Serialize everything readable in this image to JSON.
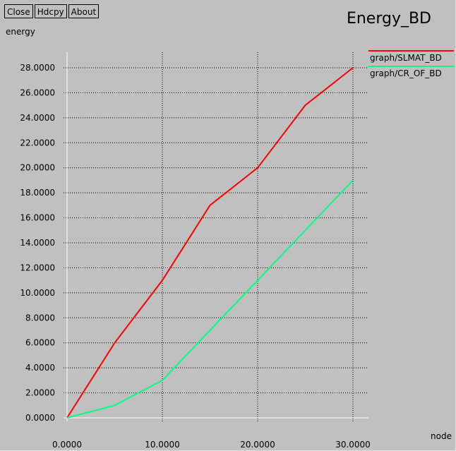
{
  "window": {
    "buttons": [
      {
        "id": "close",
        "label": "Close"
      },
      {
        "id": "hdcpy",
        "label": "Hdcpy"
      },
      {
        "id": "about",
        "label": "About"
      }
    ]
  },
  "chart_data": {
    "type": "line",
    "title": "Energy_BD",
    "xlabel": "node",
    "ylabel": "energy",
    "xlim": [
      0,
      30
    ],
    "ylim": [
      0,
      28
    ],
    "grid": true,
    "legend_position": "right",
    "x_ticks": [
      0,
      10,
      20,
      30
    ],
    "x_tick_labels": [
      "0.0000",
      "10.0000",
      "20.0000",
      "30.0000"
    ],
    "y_ticks": [
      0,
      2,
      4,
      6,
      8,
      10,
      12,
      14,
      16,
      18,
      20,
      22,
      24,
      26,
      28
    ],
    "y_tick_labels": [
      "0.0000",
      "2.0000",
      "4.0000",
      "6.0000",
      "8.0000",
      "10.0000",
      "12.0000",
      "14.0000",
      "16.0000",
      "18.0000",
      "20.0000",
      "22.0000",
      "24.0000",
      "26.0000",
      "28.0000"
    ],
    "x": [
      0,
      5,
      10,
      15,
      20,
      25,
      30
    ],
    "series": [
      {
        "name": "graph/SLMAT_BD",
        "color": "#ff0000",
        "values": [
          0,
          6,
          11,
          17,
          20,
          25,
          28
        ]
      },
      {
        "name": "graph/CR_OF_BD",
        "color": "#00ff7f",
        "values": [
          0,
          1,
          3,
          7,
          11,
          15,
          19
        ]
      }
    ]
  }
}
